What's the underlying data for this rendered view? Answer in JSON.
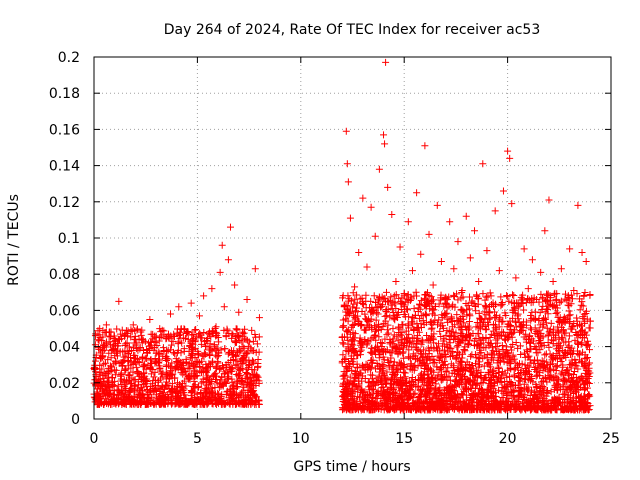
{
  "chart_data": {
    "type": "scatter",
    "title": "Day 264 of 2024, Rate Of TEC Index for receiver ac53",
    "xlabel": "GPS time / hours",
    "ylabel": "ROTI / TECUs",
    "xlim": [
      0,
      25
    ],
    "ylim": [
      0,
      0.2
    ],
    "xticks": [
      0,
      5,
      10,
      15,
      20,
      25
    ],
    "xtick_labels": [
      "0",
      "5",
      "10",
      "15",
      "20",
      "25"
    ],
    "yticks": [
      0,
      0.02,
      0.04,
      0.06,
      0.08,
      0.1,
      0.12,
      0.14,
      0.16,
      0.18,
      0.2
    ],
    "ytick_labels": [
      "0",
      "0.02",
      "0.04",
      "0.06",
      "0.08",
      "0.1",
      "0.12",
      "0.14",
      "0.16",
      "0.18",
      "0.2"
    ],
    "grid": true,
    "marker": "+",
    "color": "#ff0000",
    "series": [
      {
        "points": [
          [
            0.0,
            0.028
          ],
          [
            0.1,
            0.034
          ],
          [
            0.2,
            0.022
          ],
          [
            0.3,
            0.045
          ],
          [
            0.4,
            0.018
          ],
          [
            0.5,
            0.038
          ],
          [
            0.6,
            0.052
          ],
          [
            0.7,
            0.026
          ],
          [
            0.8,
            0.041
          ],
          [
            0.9,
            0.019
          ],
          [
            1.0,
            0.035
          ],
          [
            1.2,
            0.065
          ],
          [
            1.3,
            0.031
          ],
          [
            1.5,
            0.046
          ],
          [
            1.7,
            0.024
          ],
          [
            1.9,
            0.052
          ],
          [
            2.1,
            0.033
          ],
          [
            2.3,
            0.044
          ],
          [
            2.5,
            0.021
          ],
          [
            2.7,
            0.055
          ],
          [
            2.9,
            0.038
          ],
          [
            3.1,
            0.017
          ],
          [
            3.3,
            0.049
          ],
          [
            3.5,
            0.029
          ],
          [
            3.7,
            0.058
          ],
          [
            3.9,
            0.036
          ],
          [
            4.1,
            0.062
          ],
          [
            4.3,
            0.027
          ],
          [
            4.5,
            0.048
          ],
          [
            4.7,
            0.064
          ],
          [
            4.9,
            0.039
          ],
          [
            5.1,
            0.057
          ],
          [
            5.3,
            0.068
          ],
          [
            5.5,
            0.043
          ],
          [
            5.7,
            0.072
          ],
          [
            5.9,
            0.051
          ],
          [
            6.1,
            0.081
          ],
          [
            6.2,
            0.096
          ],
          [
            6.3,
            0.062
          ],
          [
            6.5,
            0.088
          ],
          [
            6.6,
            0.106
          ],
          [
            6.8,
            0.074
          ],
          [
            7.0,
            0.059
          ],
          [
            7.2,
            0.047
          ],
          [
            7.4,
            0.066
          ],
          [
            7.6,
            0.038
          ],
          [
            7.8,
            0.083
          ],
          [
            8.0,
            0.056
          ],
          [
            12.0,
            0.045
          ],
          [
            12.1,
            0.062
          ],
          [
            12.2,
            0.159
          ],
          [
            12.25,
            0.141
          ],
          [
            12.3,
            0.131
          ],
          [
            12.4,
            0.111
          ],
          [
            12.6,
            0.073
          ],
          [
            12.8,
            0.092
          ],
          [
            13.0,
            0.122
          ],
          [
            13.2,
            0.084
          ],
          [
            13.4,
            0.117
          ],
          [
            13.6,
            0.101
          ],
          [
            13.8,
            0.138
          ],
          [
            14.0,
            0.157
          ],
          [
            14.05,
            0.152
          ],
          [
            14.1,
            0.197
          ],
          [
            14.2,
            0.128
          ],
          [
            14.4,
            0.113
          ],
          [
            14.6,
            0.076
          ],
          [
            14.8,
            0.095
          ],
          [
            15.0,
            0.068
          ],
          [
            15.2,
            0.109
          ],
          [
            15.4,
            0.082
          ],
          [
            15.6,
            0.125
          ],
          [
            15.8,
            0.091
          ],
          [
            16.0,
            0.151
          ],
          [
            16.2,
            0.102
          ],
          [
            16.4,
            0.074
          ],
          [
            16.6,
            0.118
          ],
          [
            16.8,
            0.087
          ],
          [
            17.0,
            0.064
          ],
          [
            17.2,
            0.109
          ],
          [
            17.4,
            0.083
          ],
          [
            17.6,
            0.098
          ],
          [
            17.8,
            0.071
          ],
          [
            18.0,
            0.112
          ],
          [
            18.2,
            0.089
          ],
          [
            18.4,
            0.104
          ],
          [
            18.6,
            0.076
          ],
          [
            18.8,
            0.141
          ],
          [
            19.0,
            0.093
          ],
          [
            19.2,
            0.068
          ],
          [
            19.4,
            0.115
          ],
          [
            19.6,
            0.082
          ],
          [
            19.8,
            0.126
          ],
          [
            20.0,
            0.148
          ],
          [
            20.1,
            0.144
          ],
          [
            20.2,
            0.119
          ],
          [
            20.4,
            0.078
          ],
          [
            20.6,
            0.063
          ],
          [
            20.8,
            0.094
          ],
          [
            21.0,
            0.072
          ],
          [
            21.2,
            0.088
          ],
          [
            21.4,
            0.066
          ],
          [
            21.6,
            0.081
          ],
          [
            21.8,
            0.104
          ],
          [
            22.0,
            0.121
          ],
          [
            22.2,
            0.076
          ],
          [
            22.4,
            0.059
          ],
          [
            22.6,
            0.083
          ],
          [
            22.8,
            0.069
          ],
          [
            23.0,
            0.094
          ],
          [
            23.2,
            0.071
          ],
          [
            23.4,
            0.118
          ],
          [
            23.6,
            0.092
          ],
          [
            23.8,
            0.087
          ],
          [
            24.0,
            0.054
          ]
        ],
        "bands": [
          {
            "x_range": [
              0.0,
              8.0
            ],
            "low": 0.008,
            "high": 0.05,
            "density": 1400
          },
          {
            "x_range": [
              12.0,
              24.0
            ],
            "low": 0.005,
            "high": 0.07,
            "density": 3000
          }
        ]
      }
    ]
  }
}
